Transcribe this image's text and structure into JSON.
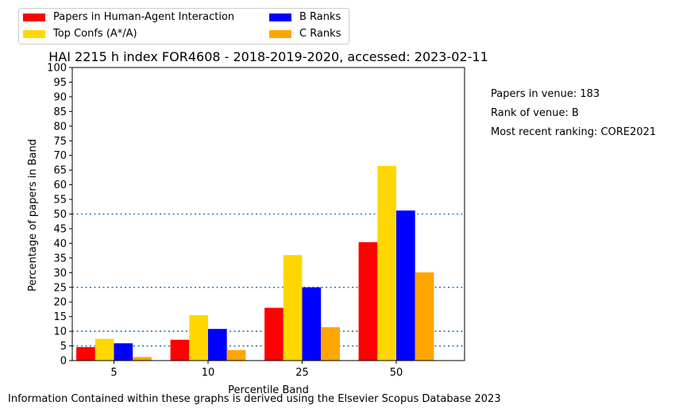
{
  "chart_data": {
    "type": "bar",
    "title": "HAI 2215 h index FOR4608 - 2018-2019-2020, accessed: 2023-02-11",
    "xlabel": "Percentile Band",
    "ylabel": "Percentage of papers in Band",
    "categories": [
      "5",
      "10",
      "25",
      "50"
    ],
    "ylim": [
      0,
      100
    ],
    "yticks": [
      0,
      5,
      10,
      15,
      20,
      25,
      30,
      35,
      40,
      45,
      50,
      55,
      60,
      65,
      70,
      75,
      80,
      85,
      90,
      95,
      100
    ],
    "reference_lines": [
      5,
      10,
      25,
      50
    ],
    "legend_position": "above plot, top-left",
    "series": [
      {
        "name": "Papers in Human-Agent Interaction",
        "color": "#ff0000",
        "values": [
          4.6,
          7.1,
          18.0,
          40.4
        ]
      },
      {
        "name": "Top Confs (A*/A)",
        "color": "#ffd700",
        "values": [
          7.4,
          15.5,
          36.0,
          66.4
        ]
      },
      {
        "name": "B Ranks",
        "color": "#0000ff",
        "values": [
          5.9,
          10.8,
          25.0,
          51.2
        ]
      },
      {
        "name": "C Ranks",
        "color": "#ffa500",
        "values": [
          1.2,
          3.6,
          11.4,
          30.1
        ]
      }
    ],
    "reference_line_color": "#1f77b4"
  },
  "side_notes": {
    "papers": "Papers in venue: 183",
    "rank": "Rank of venue: B",
    "ranking": "Most recent ranking: CORE2021"
  },
  "footer": "Information Contained within these graphs is derived using the Elsevier Scopus Database 2023"
}
